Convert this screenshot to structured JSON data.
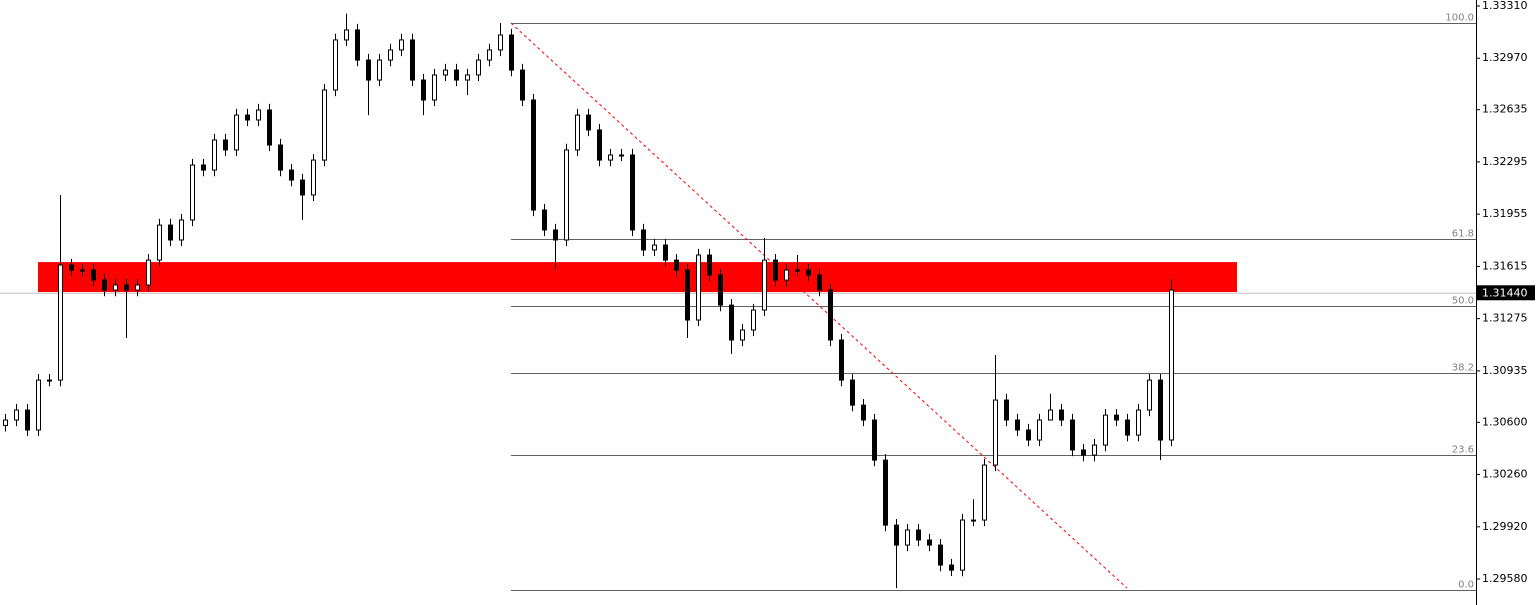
{
  "chart_data": {
    "type": "candlestick",
    "ylim": [
      1.29411,
      1.33349
    ],
    "yticks": [
      {
        "value": 1.3331,
        "label": "1.33310"
      },
      {
        "value": 1.3297,
        "label": "1.32970"
      },
      {
        "value": 1.32635,
        "label": "1.32635"
      },
      {
        "value": 1.32295,
        "label": "1.32295"
      },
      {
        "value": 1.31955,
        "label": "1.31955"
      },
      {
        "value": 1.31615,
        "label": "1.31615"
      },
      {
        "value": 1.31275,
        "label": "1.31275"
      },
      {
        "value": 1.30935,
        "label": "1.30935"
      },
      {
        "value": 1.306,
        "label": "1.30600"
      },
      {
        "value": 1.3026,
        "label": "1.30260"
      },
      {
        "value": 1.2992,
        "label": "1.29920"
      },
      {
        "value": 1.2958,
        "label": "1.29580"
      }
    ],
    "current_price": {
      "value": 1.3144,
      "label": "1.31440"
    },
    "zone": {
      "from_index": 3,
      "to_index": 112,
      "low": 1.31448,
      "high": 1.31643,
      "color": "#ff0000"
    },
    "trendline": {
      "from_index": 46,
      "from_price": 1.33199,
      "to_index": 102,
      "to_price": 1.29521,
      "color": "#ff0000"
    },
    "fib": {
      "from_index": 46,
      "levels": [
        {
          "value": 1.33199,
          "label": "100.0"
        },
        {
          "value": 1.31793,
          "label": "61.8"
        },
        {
          "value": 1.31357,
          "label": "50.0"
        },
        {
          "value": 1.3092,
          "label": "38.2"
        },
        {
          "value": 1.30387,
          "label": "23.6"
        },
        {
          "value": 1.29508,
          "label": "0.0"
        }
      ]
    },
    "candles": [
      [
        1.3058,
        1.30655,
        1.3054,
        1.30615
      ],
      [
        1.30615,
        1.3072,
        1.30575,
        1.3068
      ],
      [
        1.3068,
        1.3072,
        1.3051,
        1.3055
      ],
      [
        1.3055,
        1.30915,
        1.3051,
        1.30875
      ],
      [
        1.30875,
        1.30915,
        1.30835,
        1.30875
      ],
      [
        1.30875,
        1.3208,
        1.30835,
        1.31624
      ],
      [
        1.31624,
        1.31664,
        1.31551,
        1.31591
      ],
      [
        1.31591,
        1.31631,
        1.31551,
        1.31591
      ],
      [
        1.31591,
        1.31631,
        1.31486,
        1.31526
      ],
      [
        1.31526,
        1.31566,
        1.31421,
        1.31461
      ],
      [
        1.31461,
        1.31534,
        1.31421,
        1.31494
      ],
      [
        1.31494,
        1.31534,
        1.31149,
        1.31461
      ],
      [
        1.31461,
        1.31534,
        1.31421,
        1.31494
      ],
      [
        1.31494,
        1.31696,
        1.31454,
        1.31656
      ],
      [
        1.31656,
        1.31924,
        1.31616,
        1.31884
      ],
      [
        1.31884,
        1.31924,
        1.31747,
        1.31787
      ],
      [
        1.31787,
        1.31957,
        1.31747,
        1.31917
      ],
      [
        1.31917,
        1.32315,
        1.31877,
        1.32275
      ],
      [
        1.32275,
        1.32315,
        1.32202,
        1.32242
      ],
      [
        1.32242,
        1.32478,
        1.32202,
        1.32438
      ],
      [
        1.32438,
        1.32478,
        1.32333,
        1.32373
      ],
      [
        1.32373,
        1.3264,
        1.32333,
        1.326
      ],
      [
        1.326,
        1.3264,
        1.32528,
        1.32568
      ],
      [
        1.32568,
        1.32673,
        1.32528,
        1.32633
      ],
      [
        1.32633,
        1.32673,
        1.32365,
        1.32405
      ],
      [
        1.32405,
        1.32445,
        1.32202,
        1.32242
      ],
      [
        1.32242,
        1.32282,
        1.32137,
        1.32177
      ],
      [
        1.32177,
        1.32217,
        1.31917,
        1.3208
      ],
      [
        1.3208,
        1.32347,
        1.3204,
        1.32307
      ],
      [
        1.32307,
        1.32803,
        1.32267,
        1.32763
      ],
      [
        1.32763,
        1.33129,
        1.32723,
        1.33089
      ],
      [
        1.33089,
        1.3326,
        1.33049,
        1.33154
      ],
      [
        1.33154,
        1.33194,
        1.32918,
        1.32958
      ],
      [
        1.32958,
        1.32998,
        1.326,
        1.32828
      ],
      [
        1.32828,
        1.32998,
        1.32788,
        1.32958
      ],
      [
        1.32958,
        1.33064,
        1.32918,
        1.33024
      ],
      [
        1.33024,
        1.33129,
        1.32984,
        1.33089
      ],
      [
        1.33089,
        1.33129,
        1.32788,
        1.32828
      ],
      [
        1.32828,
        1.32868,
        1.326,
        1.32698
      ],
      [
        1.32698,
        1.32901,
        1.32658,
        1.32861
      ],
      [
        1.32861,
        1.32933,
        1.32821,
        1.32893
      ],
      [
        1.32893,
        1.32933,
        1.32788,
        1.32828
      ],
      [
        1.32828,
        1.32901,
        1.3273,
        1.32861
      ],
      [
        1.32861,
        1.32998,
        1.32821,
        1.32958
      ],
      [
        1.32958,
        1.33064,
        1.32918,
        1.33024
      ],
      [
        1.33024,
        1.33199,
        1.32984,
        1.33121
      ],
      [
        1.33121,
        1.33161,
        1.32853,
        1.32893
      ],
      [
        1.32893,
        1.32933,
        1.32658,
        1.32698
      ],
      [
        1.32698,
        1.32738,
        1.31942,
        1.31982
      ],
      [
        1.31982,
        1.32022,
        1.31812,
        1.31852
      ],
      [
        1.31852,
        1.31892,
        1.31591,
        1.31787
      ],
      [
        1.31787,
        1.32413,
        1.31747,
        1.32373
      ],
      [
        1.32373,
        1.3264,
        1.32333,
        1.326
      ],
      [
        1.326,
        1.3264,
        1.32463,
        1.32503
      ],
      [
        1.32503,
        1.32543,
        1.32267,
        1.32307
      ],
      [
        1.32307,
        1.3238,
        1.32267,
        1.3234
      ],
      [
        1.3234,
        1.3238,
        1.323,
        1.3234
      ],
      [
        1.3234,
        1.3238,
        1.31812,
        1.31852
      ],
      [
        1.31852,
        1.31892,
        1.31682,
        1.31722
      ],
      [
        1.31722,
        1.31794,
        1.31682,
        1.31754
      ],
      [
        1.31754,
        1.31794,
        1.31616,
        1.31656
      ],
      [
        1.31656,
        1.31696,
        1.31551,
        1.31591
      ],
      [
        1.31591,
        1.31631,
        1.31149,
        1.31266
      ],
      [
        1.31266,
        1.31729,
        1.31226,
        1.31689
      ],
      [
        1.31689,
        1.31729,
        1.31519,
        1.31559
      ],
      [
        1.31559,
        1.31599,
        1.31323,
        1.31363
      ],
      [
        1.31363,
        1.31403,
        1.31045,
        1.31136
      ],
      [
        1.31136,
        1.31241,
        1.31096,
        1.31201
      ],
      [
        1.31201,
        1.31371,
        1.31161,
        1.31331
      ],
      [
        1.31331,
        1.318,
        1.31291,
        1.31656
      ],
      [
        1.31656,
        1.31696,
        1.31486,
        1.31526
      ],
      [
        1.31526,
        1.31631,
        1.31486,
        1.31591
      ],
      [
        1.31591,
        1.31689,
        1.31551,
        1.31591
      ],
      [
        1.31591,
        1.31631,
        1.31519,
        1.31559
      ],
      [
        1.31559,
        1.31599,
        1.31421,
        1.31461
      ],
      [
        1.31461,
        1.31501,
        1.31096,
        1.31136
      ],
      [
        1.31136,
        1.31176,
        1.30835,
        1.30875
      ],
      [
        1.30875,
        1.30915,
        1.30672,
        1.30712
      ],
      [
        1.30712,
        1.30752,
        1.30575,
        1.30615
      ],
      [
        1.30615,
        1.30655,
        1.30314,
        1.30354
      ],
      [
        1.30354,
        1.30394,
        1.29891,
        1.29931
      ],
      [
        1.29931,
        1.29971,
        1.29521,
        1.29801
      ],
      [
        1.29801,
        1.29939,
        1.29761,
        1.29899
      ],
      [
        1.29899,
        1.29939,
        1.29794,
        1.29834
      ],
      [
        1.29834,
        1.29874,
        1.29761,
        1.29801
      ],
      [
        1.29801,
        1.29841,
        1.29631,
        1.29671
      ],
      [
        1.29671,
        1.29711,
        1.296,
        1.29638
      ],
      [
        1.29638,
        1.30004,
        1.29598,
        1.29964
      ],
      [
        1.29964,
        1.301,
        1.29924,
        1.29964
      ],
      [
        1.29964,
        1.30362,
        1.29924,
        1.30322
      ],
      [
        1.30322,
        1.31038,
        1.30282,
        1.30745
      ],
      [
        1.30745,
        1.30785,
        1.30575,
        1.30615
      ],
      [
        1.30615,
        1.30655,
        1.3051,
        1.3055
      ],
      [
        1.3055,
        1.3059,
        1.30445,
        1.30485
      ],
      [
        1.30485,
        1.30655,
        1.30445,
        1.30615
      ],
      [
        1.30615,
        1.30785,
        1.3064,
        1.3068
      ],
      [
        1.3068,
        1.3072,
        1.30575,
        1.30615
      ],
      [
        1.30615,
        1.30655,
        1.3038,
        1.3042
      ],
      [
        1.3042,
        1.3046,
        1.30347,
        1.30387
      ],
      [
        1.30387,
        1.30492,
        1.30347,
        1.30452
      ],
      [
        1.30452,
        1.30687,
        1.30412,
        1.30647
      ],
      [
        1.30647,
        1.30687,
        1.30575,
        1.30615
      ],
      [
        1.30615,
        1.30655,
        1.30477,
        1.30517
      ],
      [
        1.30517,
        1.3072,
        1.30477,
        1.3068
      ],
      [
        1.3068,
        1.30915,
        1.3064,
        1.30875
      ],
      [
        1.30875,
        1.30915,
        1.30354,
        1.30485
      ],
      [
        1.30485,
        1.31534,
        1.30445,
        1.31461
      ]
    ]
  }
}
